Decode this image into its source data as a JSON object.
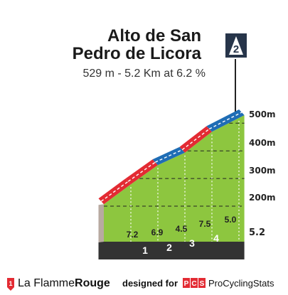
{
  "chart_data": {
    "type": "area",
    "title_lines": [
      "Alto de San",
      "Pedro de Licora"
    ],
    "subtitle": "529 m - 5.2 Km at 6.2 %",
    "category_badge": "2",
    "y_ticks": [
      {
        "value": 200,
        "label": "200m"
      },
      {
        "value": 300,
        "label": "300m"
      },
      {
        "value": 400,
        "label": "400m"
      },
      {
        "value": 500,
        "label": "500m"
      }
    ],
    "ylim": [
      130,
      530
    ],
    "xlim": [
      0,
      5.2
    ],
    "km_markers": [
      "1",
      "2",
      "3",
      "4"
    ],
    "total_distance_label": "5.2",
    "segments": [
      {
        "from_km": 0,
        "to_km": 1,
        "gradient": 7.2,
        "label": "7.2"
      },
      {
        "from_km": 1,
        "to_km": 2,
        "gradient": 6.9,
        "label": "6.9"
      },
      {
        "from_km": 2,
        "to_km": 3,
        "gradient": 4.5,
        "label": "4.5"
      },
      {
        "from_km": 3,
        "to_km": 4,
        "gradient": 7.5,
        "label": "7.5"
      },
      {
        "from_km": 4,
        "to_km": 5.2,
        "gradient": 5.0,
        "label": "5.0"
      }
    ],
    "start_altitude": 207,
    "summit_altitude": 529,
    "colors": {
      "fill": "#8dc63f",
      "red": "#e32b33",
      "blue": "#1f6db5",
      "base": "#333333",
      "side": "#b8aaa1"
    }
  },
  "footer": {
    "brand_la": "La Flamme",
    "brand_rouge": "Rouge",
    "designed_for": "designed for",
    "pcs_letters": [
      "P",
      "C",
      "S"
    ],
    "procycling": "ProCyclingStats"
  }
}
